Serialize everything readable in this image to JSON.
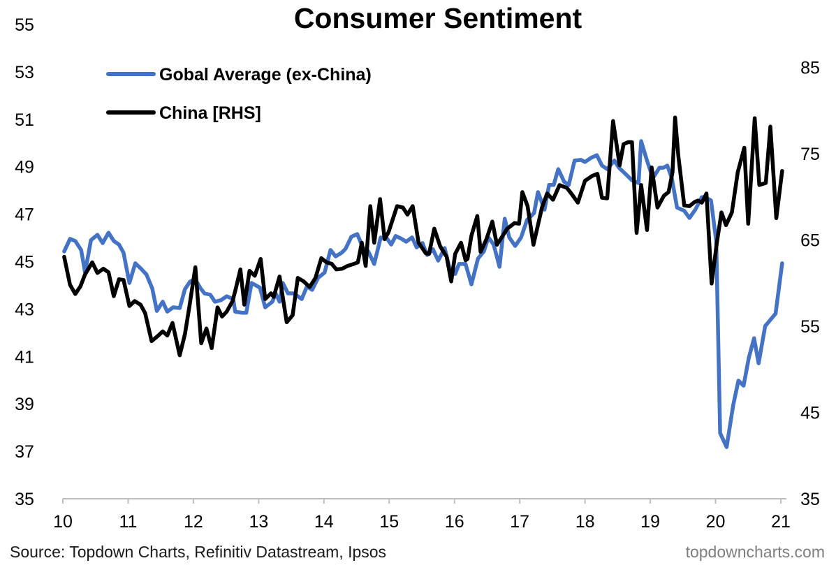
{
  "chart_data": {
    "type": "line",
    "title": "Consumer Sentiment",
    "xlabel": "",
    "ylabel": "",
    "xlim": [
      10,
      21
    ],
    "x_ticks": [
      "10",
      "11",
      "12",
      "13",
      "14",
      "15",
      "16",
      "17",
      "18",
      "19",
      "20",
      "21"
    ],
    "ylim_left": [
      35,
      55
    ],
    "y_ticks_left": [
      "55",
      "53",
      "51",
      "49",
      "47",
      "45",
      "43",
      "41",
      "39",
      "37",
      "35"
    ],
    "ylim_right": [
      35,
      90
    ],
    "y_ticks_right": [
      "85",
      "75",
      "65",
      "55",
      "45",
      "35"
    ],
    "grid": false,
    "legend_position": "top-left",
    "colors": {
      "global": "#4472C4",
      "china": "#000000"
    },
    "series": [
      {
        "name": "Gobal Average (ex-China)",
        "axis": "left",
        "points": [
          [
            10.02,
            45.43
          ],
          [
            10.11,
            45.96
          ],
          [
            10.19,
            45.87
          ],
          [
            10.28,
            45.49
          ],
          [
            10.34,
            44.54
          ],
          [
            10.43,
            45.9
          ],
          [
            10.53,
            46.13
          ],
          [
            10.61,
            45.78
          ],
          [
            10.7,
            46.22
          ],
          [
            10.78,
            45.87
          ],
          [
            10.86,
            45.72
          ],
          [
            10.93,
            45.37
          ],
          [
            11.02,
            44.1
          ],
          [
            11.11,
            44.93
          ],
          [
            11.19,
            44.72
          ],
          [
            11.28,
            44.46
          ],
          [
            11.37,
            43.87
          ],
          [
            11.44,
            42.92
          ],
          [
            11.53,
            43.31
          ],
          [
            11.6,
            42.89
          ],
          [
            11.69,
            43.07
          ],
          [
            11.79,
            43.04
          ],
          [
            11.87,
            43.84
          ],
          [
            11.95,
            44.16
          ],
          [
            12.03,
            44.25
          ],
          [
            12.11,
            43.87
          ],
          [
            12.17,
            43.66
          ],
          [
            12.26,
            43.6
          ],
          [
            12.33,
            43.31
          ],
          [
            12.42,
            43.37
          ],
          [
            12.51,
            43.54
          ],
          [
            12.61,
            43.42
          ],
          [
            12.64,
            42.89
          ],
          [
            12.75,
            42.84
          ],
          [
            12.81,
            42.84
          ],
          [
            12.89,
            44.1
          ],
          [
            13.02,
            43.9
          ],
          [
            13.1,
            43.07
          ],
          [
            13.21,
            43.31
          ],
          [
            13.26,
            43.66
          ],
          [
            13.32,
            43.31
          ],
          [
            13.37,
            44.1
          ],
          [
            13.45,
            43.66
          ],
          [
            13.54,
            43.66
          ],
          [
            13.66,
            43.42
          ],
          [
            13.74,
            43.95
          ],
          [
            13.82,
            43.81
          ],
          [
            13.91,
            44.31
          ],
          [
            14.01,
            44.54
          ],
          [
            14.1,
            45.49
          ],
          [
            14.18,
            45.22
          ],
          [
            14.27,
            45.37
          ],
          [
            14.33,
            45.54
          ],
          [
            14.42,
            46.05
          ],
          [
            14.51,
            46.16
          ],
          [
            14.6,
            45.57
          ],
          [
            14.68,
            45.43
          ],
          [
            14.77,
            44.9
          ],
          [
            14.87,
            46.02
          ],
          [
            14.97,
            45.96
          ],
          [
            15.03,
            45.72
          ],
          [
            15.1,
            46.08
          ],
          [
            15.19,
            45.96
          ],
          [
            15.26,
            45.84
          ],
          [
            15.35,
            46.02
          ],
          [
            15.42,
            45.6
          ],
          [
            15.51,
            45.78
          ],
          [
            15.58,
            45.28
          ],
          [
            15.67,
            45.52
          ],
          [
            15.75,
            45.04
          ],
          [
            15.85,
            45.57
          ],
          [
            15.94,
            44.54
          ],
          [
            16.01,
            44.48
          ],
          [
            16.07,
            44.9
          ],
          [
            16.17,
            44.9
          ],
          [
            16.26,
            44.04
          ],
          [
            16.36,
            45.13
          ],
          [
            16.45,
            45.43
          ],
          [
            16.52,
            46.02
          ],
          [
            16.6,
            45.72
          ],
          [
            16.69,
            44.78
          ],
          [
            16.77,
            46.81
          ],
          [
            16.84,
            46.02
          ],
          [
            16.93,
            45.66
          ],
          [
            17.02,
            46.02
          ],
          [
            17.11,
            46.75
          ],
          [
            17.22,
            47.05
          ],
          [
            17.28,
            47.93
          ],
          [
            17.38,
            47.19
          ],
          [
            17.45,
            48.23
          ],
          [
            17.52,
            48.23
          ],
          [
            17.59,
            48.9
          ],
          [
            17.68,
            48.37
          ],
          [
            17.75,
            48.23
          ],
          [
            17.84,
            49.26
          ],
          [
            17.94,
            49.29
          ],
          [
            18.0,
            49.2
          ],
          [
            18.09,
            49.37
          ],
          [
            18.18,
            49.49
          ],
          [
            18.26,
            49.05
          ],
          [
            18.34,
            48.9
          ],
          [
            18.45,
            49.26
          ],
          [
            18.52,
            48.96
          ],
          [
            18.63,
            48.67
          ],
          [
            18.72,
            48.43
          ],
          [
            18.82,
            48.31
          ],
          [
            18.86,
            50.08
          ],
          [
            18.95,
            49.26
          ],
          [
            19.04,
            48.52
          ],
          [
            19.14,
            48.96
          ],
          [
            19.2,
            48.96
          ],
          [
            19.26,
            49.05
          ],
          [
            19.33,
            48.52
          ],
          [
            19.41,
            47.28
          ],
          [
            19.52,
            47.14
          ],
          [
            19.6,
            46.84
          ],
          [
            19.69,
            47.19
          ],
          [
            19.79,
            47.72
          ],
          [
            19.84,
            47.72
          ],
          [
            19.93,
            47.58
          ],
          [
            20.01,
            45.87
          ],
          [
            20.07,
            37.77
          ],
          [
            20.17,
            37.18
          ],
          [
            20.27,
            38.95
          ],
          [
            20.35,
            39.98
          ],
          [
            20.43,
            39.77
          ],
          [
            20.51,
            40.95
          ],
          [
            20.59,
            41.77
          ],
          [
            20.66,
            40.71
          ],
          [
            20.76,
            42.28
          ],
          [
            20.82,
            42.48
          ],
          [
            20.92,
            42.81
          ],
          [
            21.02,
            44.93
          ]
        ]
      },
      {
        "name": "China [RHS]",
        "axis": "right",
        "points": [
          [
            10.02,
            63.06
          ],
          [
            10.11,
            59.8
          ],
          [
            10.19,
            58.74
          ],
          [
            10.27,
            59.63
          ],
          [
            10.34,
            61.02
          ],
          [
            10.45,
            62.41
          ],
          [
            10.53,
            61.18
          ],
          [
            10.62,
            61.67
          ],
          [
            10.7,
            61.26
          ],
          [
            10.78,
            58.49
          ],
          [
            10.86,
            60.45
          ],
          [
            10.93,
            60.37
          ],
          [
            11.02,
            57.35
          ],
          [
            11.1,
            57.92
          ],
          [
            11.19,
            57.51
          ],
          [
            11.26,
            56.53
          ],
          [
            11.36,
            53.27
          ],
          [
            11.45,
            53.84
          ],
          [
            11.53,
            54.41
          ],
          [
            11.6,
            53.92
          ],
          [
            11.68,
            55.39
          ],
          [
            11.79,
            51.64
          ],
          [
            11.87,
            54.09
          ],
          [
            11.94,
            57.35
          ],
          [
            12.03,
            61.84
          ],
          [
            12.12,
            53.03
          ],
          [
            12.2,
            54.74
          ],
          [
            12.28,
            52.46
          ],
          [
            12.37,
            57.19
          ],
          [
            12.44,
            56.13
          ],
          [
            12.51,
            56.7
          ],
          [
            12.6,
            57.92
          ],
          [
            12.65,
            59.39
          ],
          [
            12.72,
            61.59
          ],
          [
            12.78,
            57.51
          ],
          [
            12.86,
            61.43
          ],
          [
            12.94,
            60.86
          ],
          [
            13.03,
            62.81
          ],
          [
            13.1,
            58.16
          ],
          [
            13.19,
            58.82
          ],
          [
            13.23,
            58.41
          ],
          [
            13.32,
            60.77
          ],
          [
            13.43,
            55.47
          ],
          [
            13.52,
            56.29
          ],
          [
            13.6,
            60.61
          ],
          [
            13.69,
            60.2
          ],
          [
            13.78,
            59.55
          ],
          [
            13.87,
            60.61
          ],
          [
            13.96,
            62.9
          ],
          [
            14.04,
            62.41
          ],
          [
            14.12,
            62.24
          ],
          [
            14.19,
            61.59
          ],
          [
            14.28,
            61.67
          ],
          [
            14.36,
            62.0
          ],
          [
            14.46,
            62.24
          ],
          [
            14.52,
            62.41
          ],
          [
            14.58,
            64.69
          ],
          [
            14.64,
            62.0
          ],
          [
            14.71,
            68.93
          ],
          [
            14.77,
            64.69
          ],
          [
            14.86,
            69.75
          ],
          [
            14.93,
            65.1
          ],
          [
            14.99,
            65.91
          ],
          [
            15.12,
            68.93
          ],
          [
            15.21,
            68.77
          ],
          [
            15.28,
            67.95
          ],
          [
            15.36,
            68.93
          ],
          [
            15.45,
            64.69
          ],
          [
            15.56,
            63.47
          ],
          [
            15.61,
            63.39
          ],
          [
            15.69,
            66.32
          ],
          [
            15.78,
            64.28
          ],
          [
            15.88,
            63.06
          ],
          [
            15.95,
            60.2
          ],
          [
            16.01,
            63.39
          ],
          [
            16.1,
            64.69
          ],
          [
            16.17,
            62.65
          ],
          [
            16.2,
            62.81
          ],
          [
            16.26,
            65.51
          ],
          [
            16.35,
            67.79
          ],
          [
            16.4,
            63.63
          ],
          [
            16.49,
            65.1
          ],
          [
            16.58,
            67.14
          ],
          [
            16.65,
            64.45
          ],
          [
            16.74,
            65.51
          ],
          [
            16.81,
            66.32
          ],
          [
            16.92,
            66.97
          ],
          [
            16.99,
            66.89
          ],
          [
            17.04,
            70.56
          ],
          [
            17.12,
            68.93
          ],
          [
            17.21,
            64.45
          ],
          [
            17.34,
            68.77
          ],
          [
            17.42,
            70.4
          ],
          [
            17.51,
            69.67
          ],
          [
            17.61,
            71.38
          ],
          [
            17.72,
            71.05
          ],
          [
            17.79,
            70.4
          ],
          [
            17.89,
            69.34
          ],
          [
            18.0,
            71.87
          ],
          [
            18.11,
            72.44
          ],
          [
            18.19,
            72.68
          ],
          [
            18.26,
            69.91
          ],
          [
            18.34,
            69.83
          ],
          [
            18.43,
            78.8
          ],
          [
            18.53,
            73.66
          ],
          [
            18.59,
            76.11
          ],
          [
            18.66,
            76.35
          ],
          [
            18.72,
            76.35
          ],
          [
            18.79,
            65.83
          ],
          [
            18.86,
            71.38
          ],
          [
            18.95,
            66.16
          ],
          [
            19.02,
            73.42
          ],
          [
            19.11,
            68.77
          ],
          [
            19.21,
            70.15
          ],
          [
            19.28,
            70.56
          ],
          [
            19.34,
            72.85
          ],
          [
            19.38,
            79.21
          ],
          [
            19.43,
            74.72
          ],
          [
            19.52,
            69.01
          ],
          [
            19.6,
            68.93
          ],
          [
            19.68,
            69.42
          ],
          [
            19.73,
            69.58
          ],
          [
            19.79,
            69.34
          ],
          [
            19.86,
            70.4
          ],
          [
            19.94,
            59.96
          ],
          [
            20.02,
            64.69
          ],
          [
            20.09,
            68.2
          ],
          [
            20.16,
            66.73
          ],
          [
            20.25,
            68.2
          ],
          [
            20.34,
            72.85
          ],
          [
            20.44,
            75.7
          ],
          [
            20.5,
            66.89
          ],
          [
            20.6,
            79.13
          ],
          [
            20.67,
            71.38
          ],
          [
            20.77,
            71.62
          ],
          [
            20.84,
            78.15
          ],
          [
            20.93,
            67.54
          ],
          [
            21.02,
            73.01
          ]
        ]
      }
    ],
    "source": "Source: Topdown Charts, Refinitiv Datastream, Ipsos",
    "brand": "topdowncharts.com"
  }
}
